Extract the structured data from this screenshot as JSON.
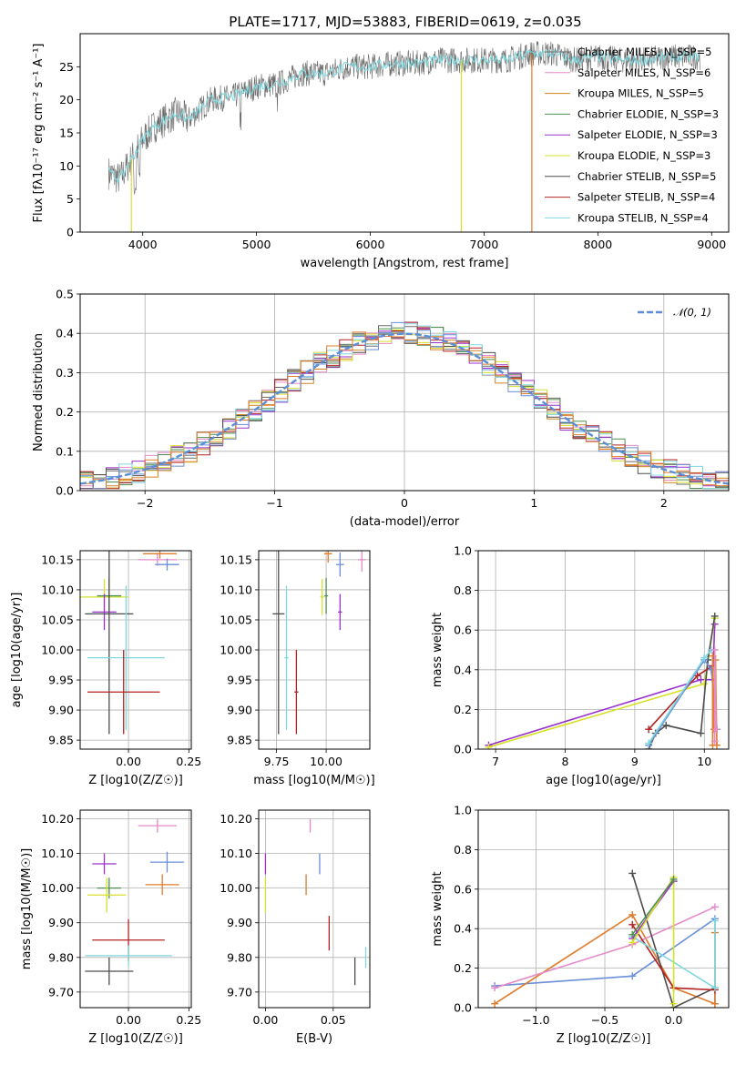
{
  "figure_title": "PLATE=1717, MJD=53883, FIBERID=0619, z=0.035",
  "colors": {
    "Chabrier MILES": "#6a6a6a",
    "Salpeter MILES": "#e48bc8",
    "Kroupa MILES": "#d2821e",
    "Chabrier ELODIE": "#4f8f4f",
    "Salpeter ELODIE": "#9932cc",
    "Kroupa ELODIE": "#d6e02a",
    "Chabrier STELIB": "#4d4d4d",
    "Salpeter STELIB": "#b22222",
    "Kroupa STELIB": "#7fd8df",
    "blue_model": "#6a8fd8",
    "orange_model": "#e07b2a",
    "gauss": "#5b8ed6"
  },
  "chart_data": [
    {
      "type": "line",
      "id": "spectrum",
      "xlabel": "wavelength [Angstrom, rest frame]",
      "ylabel": "Flux [fλ10⁻¹⁷ erg cm⁻² s⁻¹ A⁻¹]",
      "xlim": [
        3450,
        9150
      ],
      "ylim": [
        0,
        30
      ],
      "xticks": [
        4000,
        5000,
        6000,
        7000,
        8000,
        9000
      ],
      "yticks": [
        0,
        5,
        10,
        15,
        20,
        25
      ],
      "grid": false,
      "legend_position": "right",
      "continuum": {
        "x": [
          3700,
          3800,
          3900,
          4000,
          4100,
          4200,
          4300,
          4400,
          4600,
          4800,
          5000,
          5200,
          5400,
          5600,
          5800,
          6000,
          6200,
          6400,
          6600,
          6800,
          7000,
          7200,
          7400,
          7600,
          7800,
          8000,
          8200,
          8400,
          8600,
          8800
        ],
        "y": [
          9,
          8,
          11,
          14,
          16,
          17,
          18,
          17,
          20,
          20.5,
          22,
          22.5,
          24,
          24,
          25,
          25,
          25.5,
          25.5,
          26,
          26,
          26,
          26,
          27,
          27,
          26,
          26.5,
          26,
          26,
          26.5,
          26.5
        ]
      },
      "series": [
        {
          "name": "Chabrier MILES, N_SSP=5",
          "color_key": "Chabrier MILES"
        },
        {
          "name": "Salpeter MILES, N_SSP=6",
          "color_key": "Salpeter MILES"
        },
        {
          "name": "Kroupa MILES, N_SSP=5",
          "color_key": "Kroupa MILES"
        },
        {
          "name": "Chabrier ELODIE, N_SSP=3",
          "color_key": "Chabrier ELODIE"
        },
        {
          "name": "Salpeter ELODIE, N_SSP=3",
          "color_key": "Salpeter ELODIE"
        },
        {
          "name": "Kroupa ELODIE, N_SSP=3",
          "color_key": "Kroupa ELODIE"
        },
        {
          "name": "Chabrier STELIB, N_SSP=5",
          "color_key": "Chabrier STELIB"
        },
        {
          "name": "Salpeter STELIB, N_SSP=4",
          "color_key": "Salpeter STELIB"
        },
        {
          "name": "Kroupa STELIB, N_SSP=4",
          "color_key": "Kroupa STELIB"
        }
      ],
      "drops": [
        {
          "x": 3900,
          "y": 0,
          "color_key": "Kroupa ELODIE"
        },
        {
          "x": 6800,
          "y": 0,
          "color_key": "Kroupa ELODIE"
        },
        {
          "x": 7420,
          "y": 0,
          "color_key": "orange_model"
        }
      ]
    },
    {
      "type": "line",
      "id": "residuals",
      "xlabel": "(data-model)/error",
      "ylabel": "Normed distribution",
      "xlim": [
        -2.5,
        2.5
      ],
      "ylim": [
        0,
        0.5
      ],
      "xticks": [
        -2,
        -1,
        0,
        1,
        2
      ],
      "yticks": [
        0,
        0.1,
        0.2,
        0.3,
        0.4,
        0.5
      ],
      "grid": true,
      "legend_position": "top-right",
      "legend_label": "𝒩(0, 1)",
      "bin_width": 0.1
    },
    {
      "type": "scatter",
      "id": "age_vs_Z",
      "xlabel": "Z [log10(Z/Z☉)]",
      "ylabel": "age [log10(age/yr)]",
      "xlim": [
        -0.2,
        0.26
      ],
      "ylim": [
        9.835,
        10.165
      ],
      "xticks": [
        0.0,
        0.25
      ],
      "yticks": [
        9.85,
        9.9,
        9.95,
        10.0,
        10.05,
        10.1,
        10.15
      ],
      "grid": true,
      "points": [
        {
          "color_key": "Salpeter MILES",
          "x": 0.12,
          "xerr": 0.08,
          "y": 10.15,
          "yerr": 0.01
        },
        {
          "color_key": "orange_model",
          "x": 0.13,
          "xerr": 0.07,
          "y": 10.16,
          "yerr": 0.008
        },
        {
          "color_key": "blue_model",
          "x": 0.16,
          "xerr": 0.05,
          "y": 10.142,
          "yerr": 0.01
        },
        {
          "color_key": "Kroupa ELODIE",
          "x": -0.1,
          "xerr": 0.1,
          "y": 10.088,
          "yerr": 0.03
        },
        {
          "color_key": "Chabrier ELODIE",
          "x": -0.08,
          "xerr": 0.05,
          "y": 10.09,
          "yerr": 0.03
        },
        {
          "color_key": "Salpeter ELODIE",
          "x": -0.1,
          "xerr": 0.05,
          "y": 10.063,
          "yerr": 0.03
        },
        {
          "color_key": "Chabrier STELIB",
          "x": -0.08,
          "xerr": 0.1,
          "y": 10.06,
          "yerr": 0.2
        },
        {
          "color_key": "Kroupa STELIB",
          "x": -0.01,
          "xerr": 0.16,
          "y": 9.987,
          "yerr": 0.12
        },
        {
          "color_key": "Salpeter STELIB",
          "x": -0.02,
          "xerr": 0.15,
          "y": 9.93,
          "yerr": 0.07
        }
      ]
    },
    {
      "type": "scatter",
      "id": "age_vs_mass",
      "xlabel": "mass [log10(M/M☉)]",
      "ylabel": "",
      "xlim": [
        9.66,
        10.22
      ],
      "ylim": [
        9.835,
        10.165
      ],
      "xticks": [
        9.75,
        10.0
      ],
      "yticks": [
        9.85,
        9.9,
        9.95,
        10.0,
        10.05,
        10.1,
        10.15
      ],
      "grid": true,
      "points": [
        {
          "color_key": "Salpeter MILES",
          "x": 10.18,
          "xerr": 0.02,
          "y": 10.15,
          "yerr": 0.02
        },
        {
          "color_key": "orange_model",
          "x": 10.01,
          "xerr": 0.02,
          "y": 10.16,
          "yerr": 0.015
        },
        {
          "color_key": "blue_model",
          "x": 10.07,
          "xerr": 0.02,
          "y": 10.142,
          "yerr": 0.02
        },
        {
          "color_key": "Kroupa ELODIE",
          "x": 9.98,
          "xerr": 0.01,
          "y": 10.088,
          "yerr": 0.03
        },
        {
          "color_key": "Chabrier ELODIE",
          "x": 10.0,
          "xerr": 0.01,
          "y": 10.09,
          "yerr": 0.03
        },
        {
          "color_key": "Salpeter ELODIE",
          "x": 10.07,
          "xerr": 0.01,
          "y": 10.063,
          "yerr": 0.03
        },
        {
          "color_key": "Chabrier STELIB",
          "x": 9.76,
          "xerr": 0.03,
          "y": 10.06,
          "yerr": 0.2
        },
        {
          "color_key": "Kroupa STELIB",
          "x": 9.8,
          "xerr": 0.01,
          "y": 9.987,
          "yerr": 0.12
        },
        {
          "color_key": "Salpeter STELIB",
          "x": 9.85,
          "xerr": 0.01,
          "y": 9.93,
          "yerr": 0.07
        }
      ]
    },
    {
      "type": "line",
      "id": "mass_weight_vs_age",
      "xlabel": "age [log10(age/yr)]",
      "ylabel": "mass weight",
      "xlim": [
        6.75,
        10.35
      ],
      "ylim": [
        0,
        1
      ],
      "xticks": [
        7,
        8,
        9,
        10
      ],
      "yticks": [
        0.0,
        0.2,
        0.4,
        0.6,
        0.8,
        1.0
      ],
      "grid": true,
      "series": [
        {
          "color_key": "Salpeter ELODIE",
          "x": [
            6.9,
            9.95,
            10.12,
            10.15
          ],
          "y": [
            0.02,
            0.35,
            0.35,
            0.63
          ]
        },
        {
          "color_key": "Kroupa ELODIE",
          "x": [
            6.9,
            10.0,
            10.15
          ],
          "y": [
            0.01,
            0.33,
            0.66
          ]
        },
        {
          "color_key": "Chabrier STELIB",
          "x": [
            9.2,
            9.3,
            9.45,
            9.95,
            10.05,
            10.15
          ],
          "y": [
            0.0,
            0.08,
            0.12,
            0.08,
            0.45,
            0.67
          ]
        },
        {
          "color_key": "Salpeter STELIB",
          "x": [
            9.2,
            9.9,
            10.12
          ],
          "y": [
            0.1,
            0.37,
            0.42
          ]
        },
        {
          "color_key": "blue_model",
          "x": [
            9.2,
            10.0,
            10.1,
            10.18
          ],
          "y": [
            0.02,
            0.45,
            0.4,
            0.1
          ]
        },
        {
          "color_key": "Kroupa STELIB",
          "x": [
            9.2,
            10.0,
            10.1
          ],
          "y": [
            0.03,
            0.46,
            0.5
          ]
        },
        {
          "color_key": "orange_model",
          "x": [
            10.12,
            10.12,
            10.14,
            10.16,
            10.18
          ],
          "y": [
            0.02,
            0.47,
            0.1,
            0.45,
            0.02
          ]
        },
        {
          "color_key": "Salpeter MILES",
          "x": [
            10.15,
            10.15,
            10.17
          ],
          "y": [
            0.04,
            0.5,
            0.1
          ]
        }
      ]
    },
    {
      "type": "scatter",
      "id": "mass_vs_Z",
      "xlabel": "Z [log10(Z/Z☉)]",
      "ylabel": "mass [log10(M/M☉)]",
      "xlim": [
        -0.2,
        0.26
      ],
      "ylim": [
        9.655,
        10.225
      ],
      "xticks": [
        0.0,
        0.25
      ],
      "yticks": [
        9.7,
        9.8,
        9.9,
        10.0,
        10.1,
        10.2
      ],
      "grid": true,
      "points": [
        {
          "color_key": "Salpeter MILES",
          "x": 0.12,
          "xerr": 0.08,
          "y": 10.18,
          "yerr": 0.02
        },
        {
          "color_key": "Salpeter ELODIE",
          "x": -0.1,
          "xerr": 0.05,
          "y": 10.07,
          "yerr": 0.03
        },
        {
          "color_key": "blue_model",
          "x": 0.16,
          "xerr": 0.07,
          "y": 10.075,
          "yerr": 0.03
        },
        {
          "color_key": "orange_model",
          "x": 0.14,
          "xerr": 0.07,
          "y": 10.01,
          "yerr": 0.03
        },
        {
          "color_key": "Chabrier ELODIE",
          "x": -0.08,
          "xerr": 0.05,
          "y": 10.0,
          "yerr": 0.03
        },
        {
          "color_key": "Kroupa ELODIE",
          "x": -0.09,
          "xerr": 0.08,
          "y": 9.98,
          "yerr": 0.05
        },
        {
          "color_key": "Salpeter STELIB",
          "x": 0.0,
          "xerr": 0.15,
          "y": 9.85,
          "yerr": 0.06
        },
        {
          "color_key": "Kroupa STELIB",
          "x": 0.0,
          "xerr": 0.18,
          "y": 9.805,
          "yerr": 0.03
        },
        {
          "color_key": "Chabrier STELIB",
          "x": -0.08,
          "xerr": 0.1,
          "y": 9.76,
          "yerr": 0.04
        }
      ]
    },
    {
      "type": "scatter",
      "id": "mass_vs_EBV",
      "xlabel": "E(B-V)",
      "ylabel": "",
      "xlim": [
        -0.005,
        0.077
      ],
      "ylim": [
        9.655,
        10.225
      ],
      "xticks": [
        0.0,
        0.05
      ],
      "yticks": [
        9.7,
        9.8,
        9.9,
        10.0,
        10.1,
        10.2
      ],
      "grid": true,
      "points": [
        {
          "color_key": "Salpeter MILES",
          "x": 0.033,
          "xerr": 0,
          "y": 10.18,
          "yerr": 0.02
        },
        {
          "color_key": "Salpeter ELODIE",
          "x": 0.0,
          "xerr": 0,
          "y": 10.07,
          "yerr": 0.03
        },
        {
          "color_key": "blue_model",
          "x": 0.04,
          "xerr": 0,
          "y": 10.07,
          "yerr": 0.03
        },
        {
          "color_key": "orange_model",
          "x": 0.03,
          "xerr": 0,
          "y": 10.01,
          "yerr": 0.03
        },
        {
          "color_key": "Kroupa ELODIE",
          "x": 0.0,
          "xerr": 0,
          "y": 9.98,
          "yerr": 0.05
        },
        {
          "color_key": "Salpeter STELIB",
          "x": 0.047,
          "xerr": 0,
          "y": 9.87,
          "yerr": 0.05
        },
        {
          "color_key": "Kroupa STELIB",
          "x": 0.074,
          "xerr": 0,
          "y": 9.8,
          "yerr": 0.03
        },
        {
          "color_key": "Chabrier STELIB",
          "x": 0.066,
          "xerr": 0,
          "y": 9.76,
          "yerr": 0.04
        }
      ]
    },
    {
      "type": "line",
      "id": "mass_weight_vs_Z",
      "xlabel": "Z [log10(Z/Z☉)]",
      "ylabel": "mass weight",
      "xlim": [
        -1.42,
        0.4
      ],
      "ylim": [
        0,
        1
      ],
      "xticks": [
        -1.0,
        -0.5,
        0.0
      ],
      "yticks": [
        0.0,
        0.2,
        0.4,
        0.6,
        0.8,
        1.0
      ],
      "grid": true,
      "series": [
        {
          "color_key": "blue_model",
          "x": [
            -1.3,
            -0.3,
            0.3,
            0.3
          ],
          "y": [
            0.11,
            0.16,
            0.45,
            0.02
          ]
        },
        {
          "color_key": "orange_model",
          "x": [
            -1.3,
            -0.3,
            0.0,
            0.3,
            0.3
          ],
          "y": [
            0.02,
            0.47,
            0.1,
            0.02,
            0.38
          ]
        },
        {
          "color_key": "Salpeter MILES",
          "x": [
            -1.3,
            -0.3,
            0.3
          ],
          "y": [
            0.1,
            0.32,
            0.51
          ]
        },
        {
          "color_key": "Chabrier STELIB",
          "x": [
            -0.3,
            0.0,
            0.3
          ],
          "y": [
            0.68,
            0.0,
            0.1
          ]
        },
        {
          "color_key": "Salpeter STELIB",
          "x": [
            -0.3,
            0.0,
            0.3
          ],
          "y": [
            0.42,
            0.1,
            0.09
          ]
        },
        {
          "color_key": "Kroupa STELIB",
          "x": [
            -0.3,
            0.3,
            0.3
          ],
          "y": [
            0.36,
            0.1,
            0.44
          ]
        },
        {
          "color_key": "Salpeter ELODIE",
          "x": [
            -0.3,
            0.0
          ],
          "y": [
            0.35,
            0.64
          ]
        },
        {
          "color_key": "Kroupa ELODIE",
          "x": [
            -0.3,
            0.0,
            0.0
          ],
          "y": [
            0.33,
            0.66,
            0.02
          ]
        },
        {
          "color_key": "Chabrier ELODIE",
          "x": [
            -0.3,
            0.0
          ],
          "y": [
            0.37,
            0.65
          ]
        }
      ]
    }
  ]
}
